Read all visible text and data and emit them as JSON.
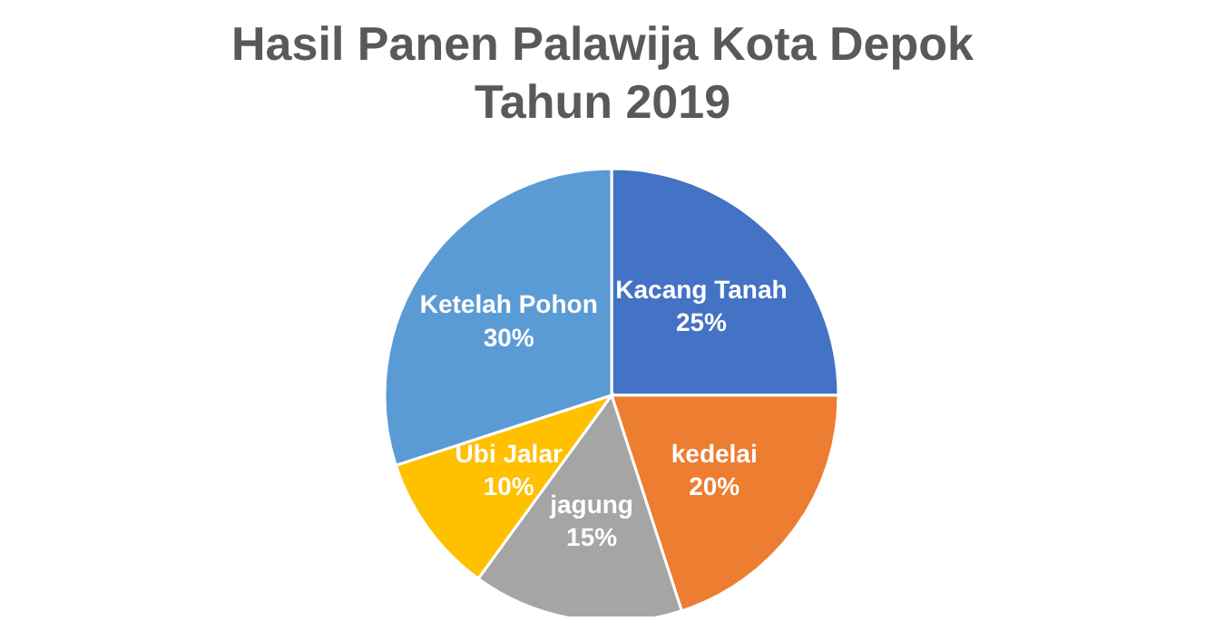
{
  "chart_data": {
    "type": "pie",
    "title": "Hasil Panen Palawija Kota Depok Tahun 2019",
    "categories": [
      "Kacang Tanah",
      "kedelai",
      "jagung",
      "Ubi Jalar",
      "Ketelah Pohon"
    ],
    "values": [
      25,
      20,
      15,
      10,
      30
    ],
    "colors": [
      "#4472c4",
      "#ed7d31",
      "#a5a5a5",
      "#ffc000",
      "#5b9bd5"
    ],
    "value_labels": [
      "25%",
      "20%",
      "15%",
      "10%",
      "30%"
    ],
    "legend": false
  }
}
